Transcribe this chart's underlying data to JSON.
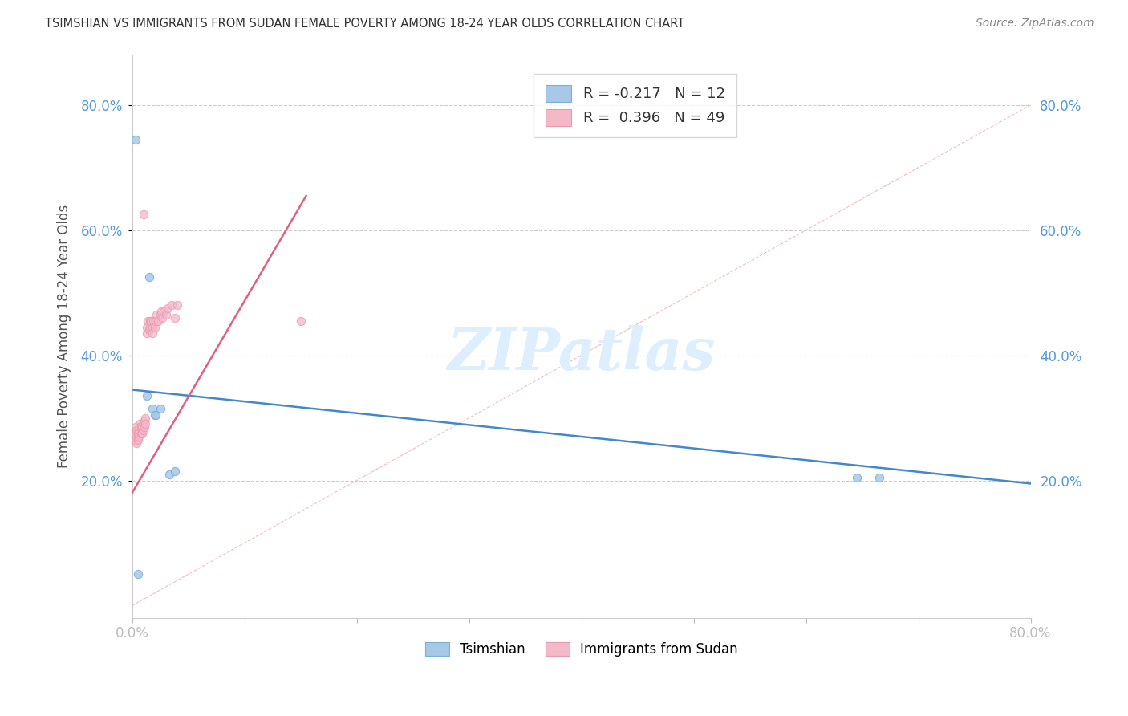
{
  "title": "TSIMSHIAN VS IMMIGRANTS FROM SUDAN FEMALE POVERTY AMONG 18-24 YEAR OLDS CORRELATION CHART",
  "source": "Source: ZipAtlas.com",
  "ylabel": "Female Poverty Among 18-24 Year Olds",
  "xlim": [
    0.0,
    0.8
  ],
  "ylim": [
    -0.02,
    0.88
  ],
  "yticks": [
    0.2,
    0.4,
    0.6,
    0.8
  ],
  "ytick_labels": [
    "20.0%",
    "40.0%",
    "60.0%",
    "80.0%"
  ],
  "tsimshian_R": -0.217,
  "tsimshian_N": 12,
  "tsimshian_color": "#a8c8e8",
  "tsimshian_edge_color": "#7bafd4",
  "tsimshian_line_color": "#4488cc",
  "sudan_R": 0.396,
  "sudan_N": 49,
  "sudan_color": "#f4b8c8",
  "sudan_edge_color": "#e89ab0",
  "sudan_line_color": "#e06080",
  "tsimshian_x": [
    0.003,
    0.013,
    0.015,
    0.018,
    0.02,
    0.021,
    0.025,
    0.033,
    0.038,
    0.645,
    0.665,
    0.005
  ],
  "tsimshian_y": [
    0.745,
    0.335,
    0.525,
    0.315,
    0.305,
    0.305,
    0.315,
    0.21,
    0.215,
    0.205,
    0.205,
    0.05
  ],
  "sudan_x": [
    0.002,
    0.002,
    0.003,
    0.003,
    0.003,
    0.004,
    0.004,
    0.004,
    0.005,
    0.005,
    0.006,
    0.006,
    0.007,
    0.007,
    0.008,
    0.008,
    0.009,
    0.009,
    0.01,
    0.01,
    0.01,
    0.011,
    0.011,
    0.012,
    0.012,
    0.013,
    0.013,
    0.014,
    0.015,
    0.016,
    0.016,
    0.017,
    0.018,
    0.018,
    0.019,
    0.02,
    0.021,
    0.022,
    0.023,
    0.025,
    0.026,
    0.027,
    0.028,
    0.03,
    0.032,
    0.035,
    0.038,
    0.04,
    0.15
  ],
  "sudan_y": [
    0.275,
    0.265,
    0.285,
    0.275,
    0.265,
    0.28,
    0.27,
    0.26,
    0.275,
    0.265,
    0.28,
    0.27,
    0.29,
    0.285,
    0.285,
    0.275,
    0.285,
    0.275,
    0.29,
    0.28,
    0.625,
    0.295,
    0.285,
    0.3,
    0.29,
    0.435,
    0.445,
    0.455,
    0.44,
    0.455,
    0.445,
    0.455,
    0.445,
    0.435,
    0.455,
    0.445,
    0.455,
    0.465,
    0.455,
    0.465,
    0.47,
    0.46,
    0.47,
    0.465,
    0.475,
    0.48,
    0.46,
    0.48,
    0.455
  ],
  "diag_color": "#e8b0b0",
  "watermark_text": "ZIPatlas",
  "watermark_color": "#ddeeff",
  "legend_tsimshian_label": "Tsimshian",
  "legend_sudan_label": "Immigrants from Sudan",
  "background_color": "#ffffff",
  "grid_color": "#cccccc",
  "tick_color": "#5599dd",
  "axis_label_color": "#555555",
  "title_color": "#333333"
}
